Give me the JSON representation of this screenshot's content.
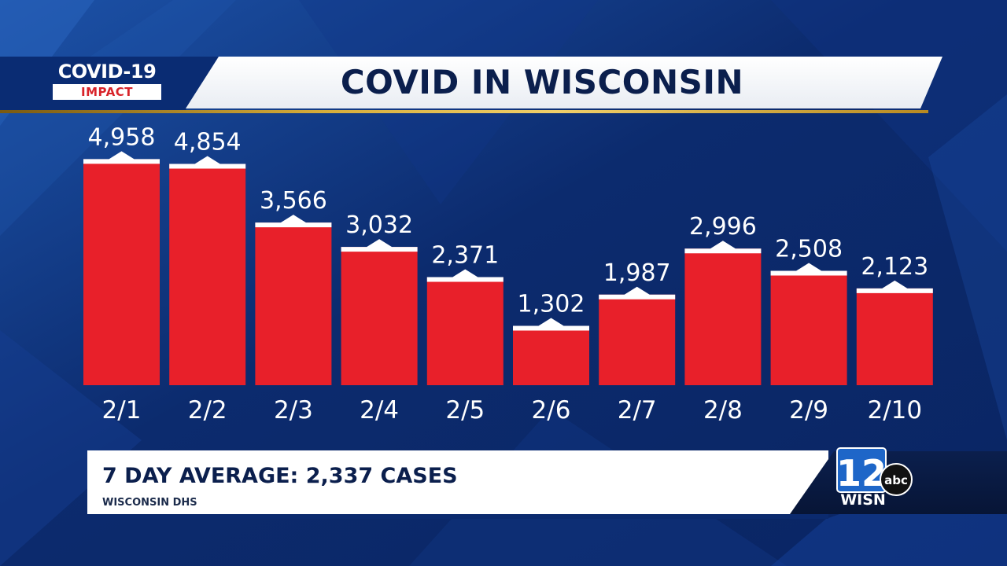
{
  "broadcast": {
    "logo_main": "COVID-19",
    "logo_sub": "IMPACT",
    "title": "COVID IN WISCONSIN",
    "summary": "7 DAY AVERAGE: 2,337 CASES",
    "source": "WISCONSIN DHS",
    "station": "WISN",
    "network": "abc",
    "channel_number": "12"
  },
  "colors": {
    "background": "#0d2a6b",
    "bar": "#e8202a",
    "bar_cap": "#ffffff",
    "title_text": "#0b1f4d",
    "gold_rule": "#d7ad3b",
    "logo_sub_text": "#d8232a"
  },
  "chart_data": {
    "type": "bar",
    "title": "COVID IN WISCONSIN",
    "categories": [
      "2/1",
      "2/2",
      "2/3",
      "2/4",
      "2/5",
      "2/6",
      "2/7",
      "2/8",
      "2/9",
      "2/10"
    ],
    "values": [
      4958,
      4854,
      3566,
      3032,
      2371,
      1302,
      1987,
      2996,
      2508,
      2123
    ],
    "value_labels": [
      "4,958",
      "4,854",
      "3,566",
      "3,032",
      "2,371",
      "1,302",
      "1,987",
      "2,996",
      "2,508",
      "2,123"
    ],
    "xlabel": "",
    "ylabel": "",
    "ylim": [
      0,
      5000
    ],
    "grid": false,
    "legend": "none"
  }
}
